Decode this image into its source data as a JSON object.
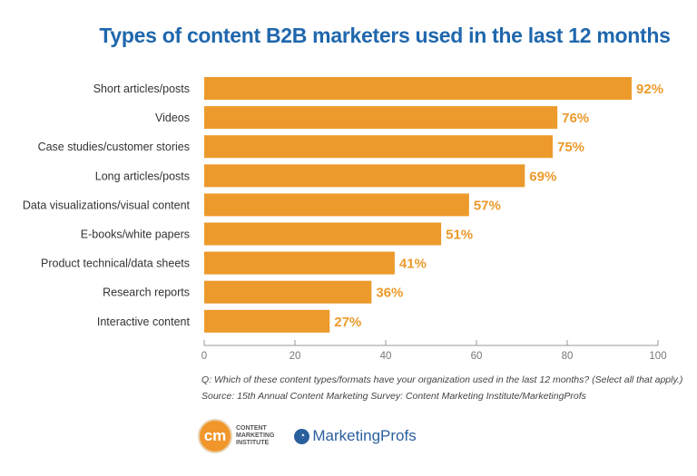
{
  "chart_data": {
    "type": "bar",
    "orientation": "horizontal",
    "title": "Types of content B2B marketers used in the last 12 months",
    "categories": [
      "Short articles/posts",
      "Videos",
      "Case studies/customer stories",
      "Long articles/posts",
      "Data visualizations/visual content",
      "E-books/white papers",
      "Product technical/data sheets",
      "Research reports",
      "Interactive content"
    ],
    "values": [
      92,
      76,
      75,
      69,
      57,
      51,
      41,
      36,
      27
    ],
    "data_labels": [
      "92%",
      "76%",
      "75%",
      "69%",
      "57%",
      "51%",
      "41%",
      "36%",
      "27%"
    ],
    "xlim": [
      0,
      100
    ],
    "xticks": [
      "0",
      "20",
      "40",
      "60",
      "80",
      "100"
    ],
    "grid": false,
    "bar_color": "#ec9a2b",
    "label_color": "#ec9a2b",
    "title_color": "#1f67ad"
  },
  "notes": {
    "question": "Q: Which of these content types/formats have your organization used in the last 12 months? (Select all that apply.)",
    "source": "Source: 15th Annual Content Marketing Survey: Content Marketing Institute/MarketingProfs"
  },
  "logos": {
    "cmi_mark": "cm",
    "cmi_text": [
      "CONTENT",
      "MARKETING",
      "INSTITUTE"
    ],
    "marketingprofs": "MarketingProfs"
  }
}
